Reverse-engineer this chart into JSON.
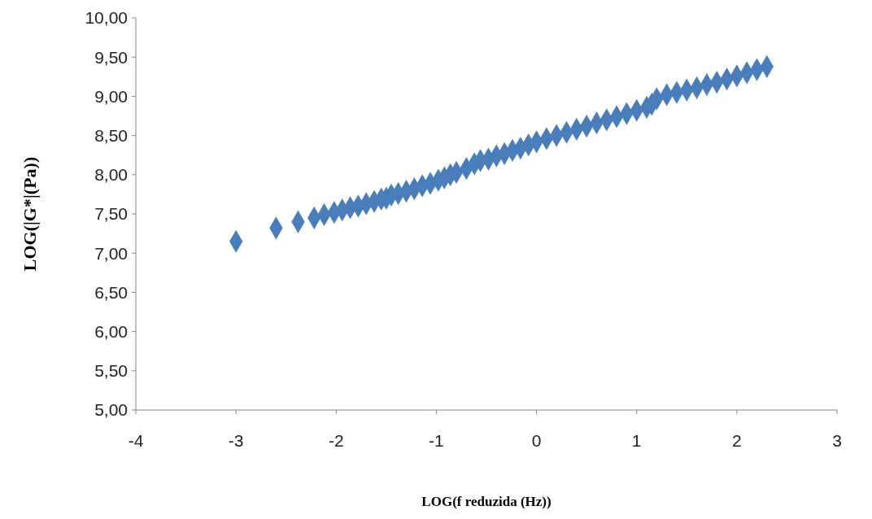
{
  "chart_data": {
    "type": "scatter",
    "xlabel": "LOG(f reduzida (Hz))",
    "ylabel": "LOG(|G*|(Pa))",
    "marker": "diamond",
    "grid": false,
    "xlim": [
      -4,
      3
    ],
    "xticks": [
      -4,
      -3,
      -2,
      -1,
      0,
      1,
      2,
      3
    ],
    "ylim": [
      5,
      10
    ],
    "yticks": [
      {
        "value": 5,
        "label": "5,00"
      },
      {
        "value": 5.5,
        "label": "5,50"
      },
      {
        "value": 6,
        "label": "6,00"
      },
      {
        "value": 6.5,
        "label": "6,50"
      },
      {
        "value": 7,
        "label": "7,00"
      },
      {
        "value": 7.5,
        "label": "7,50"
      },
      {
        "value": 8,
        "label": "8,00"
      },
      {
        "value": 8.5,
        "label": "8,50"
      },
      {
        "value": 9,
        "label": "9,00"
      },
      {
        "value": 9.5,
        "label": "9,50"
      },
      {
        "value": 10,
        "label": "10,00"
      }
    ],
    "series": [
      {
        "color": "#4a7ebb",
        "x": [
          -3.0,
          -2.6,
          -2.38,
          -2.22,
          -2.12,
          -2.02,
          -1.94,
          -1.86,
          -1.78,
          -1.7,
          -1.62,
          -1.55,
          -1.5,
          -1.45,
          -1.38,
          -1.3,
          -1.22,
          -1.14,
          -1.06,
          -0.98,
          -0.92,
          -0.86,
          -0.8,
          -0.7,
          -0.62,
          -0.56,
          -0.48,
          -0.4,
          -0.32,
          -0.24,
          -0.16,
          -0.08,
          0,
          0.1,
          0.2,
          0.3,
          0.4,
          0.5,
          0.6,
          0.7,
          0.8,
          0.9,
          1.0,
          1.1,
          1.15,
          1.2,
          1.3,
          1.4,
          1.5,
          1.6,
          1.7,
          1.8,
          1.9,
          2.0,
          2.1,
          2.2,
          2.3
        ],
        "values": [
          7.15,
          7.32,
          7.4,
          7.45,
          7.49,
          7.52,
          7.55,
          7.58,
          7.6,
          7.63,
          7.66,
          7.69,
          7.7,
          7.74,
          7.76,
          7.79,
          7.82,
          7.86,
          7.89,
          7.93,
          7.96,
          8.0,
          8.03,
          8.08,
          8.14,
          8.18,
          8.2,
          8.24,
          8.27,
          8.31,
          8.34,
          8.38,
          8.42,
          8.46,
          8.5,
          8.54,
          8.58,
          8.62,
          8.66,
          8.7,
          8.74,
          8.78,
          8.82,
          8.86,
          8.9,
          8.97,
          9.02,
          9.05,
          9.08,
          9.11,
          9.15,
          9.18,
          9.22,
          9.26,
          9.3,
          9.34,
          9.38
        ]
      }
    ]
  }
}
